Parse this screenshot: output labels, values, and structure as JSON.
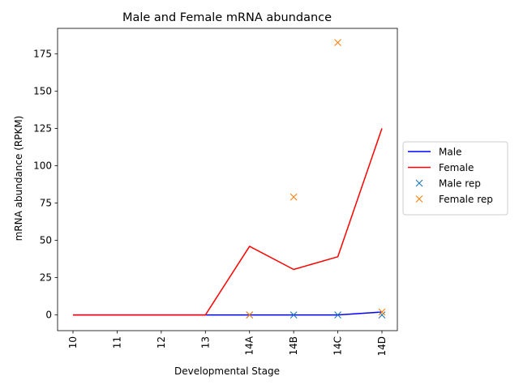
{
  "chart_data": {
    "type": "line",
    "title": "Male and Female mRNA abundance",
    "xlabel": "Developmental Stage",
    "ylabel": "mRNA abundance (RPKM)",
    "categories": [
      "10",
      "11",
      "12",
      "13",
      "14A",
      "14B",
      "14C",
      "14D"
    ],
    "ylim": [
      -10.5,
      192
    ],
    "yticks": [
      0,
      25,
      50,
      75,
      100,
      125,
      150,
      175
    ],
    "grid": false,
    "legend_position": "center-right, outside plot",
    "series": [
      {
        "name": "Male",
        "kind": "line",
        "color": "#0000ff",
        "values": [
          0,
          0,
          0,
          0,
          0,
          0,
          0,
          2
        ]
      },
      {
        "name": "Female",
        "kind": "line",
        "color": "#ff0000",
        "values": [
          0,
          0,
          0,
          0,
          46,
          30.5,
          39,
          125
        ]
      },
      {
        "name": "Male rep",
        "kind": "marker",
        "marker": "x",
        "color": "#1f77b4",
        "points": [
          [
            "14A",
            0
          ],
          [
            "14B",
            0
          ],
          [
            "14C",
            0
          ],
          [
            "14D",
            0
          ]
        ]
      },
      {
        "name": "Female rep",
        "kind": "marker",
        "marker": "x",
        "color": "#ff7f0e",
        "points": [
          [
            "14A",
            0
          ],
          [
            "14B",
            79
          ],
          [
            "14C",
            182.5
          ],
          [
            "14D",
            2
          ]
        ]
      }
    ]
  }
}
